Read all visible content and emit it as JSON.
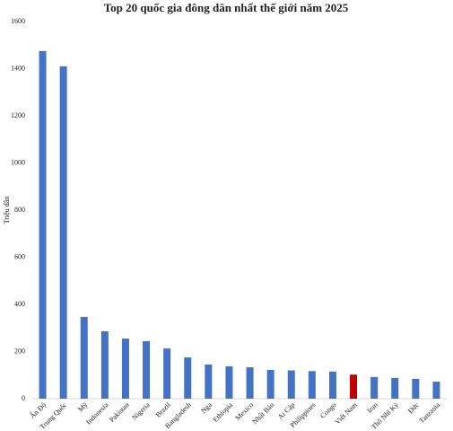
{
  "chart_data": {
    "type": "bar",
    "title": "Top 20 quốc gia đông dân nhất thế giới năm 2025",
    "ylabel": "Triệu dân",
    "categories": [
      "Ấn Độ",
      "Trung Quốc",
      "Mỹ",
      "Indonesia",
      "Pakistan",
      "Nigeria",
      "Brazil",
      "Bangladesh",
      "Nga",
      "Ethiopia",
      "Mexico",
      "Nhật Bản",
      "Ai Cập",
      "Philippines",
      "Congo",
      "Việt Nam",
      "Iran",
      "Thổ Nhĩ Kỳ",
      "Đức",
      "Tanzania"
    ],
    "values": [
      1475,
      1410,
      347,
      286,
      255,
      244,
      213,
      175,
      145,
      137,
      133,
      122,
      120,
      117,
      115,
      102,
      92,
      88,
      84,
      72
    ],
    "colors": [
      "#4472c4",
      "#4472c4",
      "#4472c4",
      "#4472c4",
      "#4472c4",
      "#4472c4",
      "#4472c4",
      "#4472c4",
      "#4472c4",
      "#4472c4",
      "#4472c4",
      "#4472c4",
      "#4472c4",
      "#4472c4",
      "#4472c4",
      "#c00000",
      "#4472c4",
      "#4472c4",
      "#4472c4",
      "#4472c4"
    ],
    "ylim": [
      0,
      1600
    ],
    "yticks": [
      0,
      200,
      400,
      600,
      800,
      1000,
      1200,
      1400,
      1600
    ],
    "grid": false
  }
}
